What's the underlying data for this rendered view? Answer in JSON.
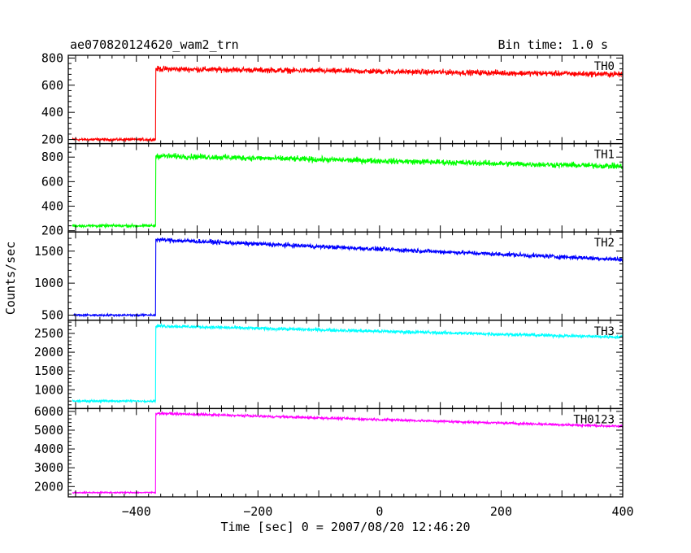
{
  "header": {
    "object_name": "ae070820124620_wam2_trn",
    "bin_time": "Bin time: 1.0 s"
  },
  "chart_data": {
    "type": "line",
    "xlabel": "Time [sec] 0 = 2007/08/20 12:46:20",
    "ylabel": "Counts/sec",
    "xlim": [
      -512,
      400
    ],
    "x_ticks": [
      -400,
      -200,
      0,
      200,
      400
    ],
    "x_tick_labels": [
      "−400",
      "−200",
      "0",
      "200",
      "400"
    ],
    "x_start": -505,
    "trigger_time": -368,
    "x_end": 400,
    "panels": [
      {
        "name": "TH0",
        "color": "#ff0000",
        "ylim": [
          170,
          820
        ],
        "y_ticks": [
          200,
          400,
          600,
          800
        ],
        "y_tick_labels": [
          "200",
          "400",
          "600",
          "800"
        ],
        "pre_level": 200,
        "pre_noise": 15,
        "post_start_level": 720,
        "post_end_level": 680,
        "post_noise": 30
      },
      {
        "name": "TH1",
        "color": "#00ff00",
        "ylim": [
          190,
          910
        ],
        "y_ticks": [
          200,
          400,
          600,
          800
        ],
        "y_tick_labels": [
          "200",
          "400",
          "600",
          "800"
        ],
        "pre_level": 240,
        "pre_noise": 17,
        "post_start_level": 810,
        "post_end_level": 725,
        "post_noise": 34
      },
      {
        "name": "TH2",
        "color": "#0000ff",
        "ylim": [
          420,
          1800
        ],
        "y_ticks": [
          500,
          1000,
          1500
        ],
        "y_tick_labels": [
          "500",
          "1000",
          "1500"
        ],
        "pre_level": 500,
        "pre_noise": 23,
        "post_start_level": 1680,
        "post_end_level": 1370,
        "post_noise": 50
      },
      {
        "name": "TH3",
        "color": "#00ffff",
        "ylim": [
          500,
          2850
        ],
        "y_ticks": [
          1000,
          1500,
          2000,
          2500
        ],
        "y_tick_labels": [
          "1000",
          "1500",
          "2000",
          "2500"
        ],
        "pre_level": 700,
        "pre_noise": 38,
        "post_start_level": 2700,
        "post_end_level": 2400,
        "post_noise": 65
      },
      {
        "name": "TH0123",
        "color": "#ff00ff",
        "ylim": [
          1450,
          6150
        ],
        "y_ticks": [
          2000,
          3000,
          4000,
          5000,
          6000
        ],
        "y_tick_labels": [
          "2000",
          "3000",
          "4000",
          "5000",
          "6000"
        ],
        "pre_level": 1680,
        "pre_noise": 55,
        "post_start_level": 5900,
        "post_end_level": 5200,
        "post_noise": 95
      }
    ]
  }
}
